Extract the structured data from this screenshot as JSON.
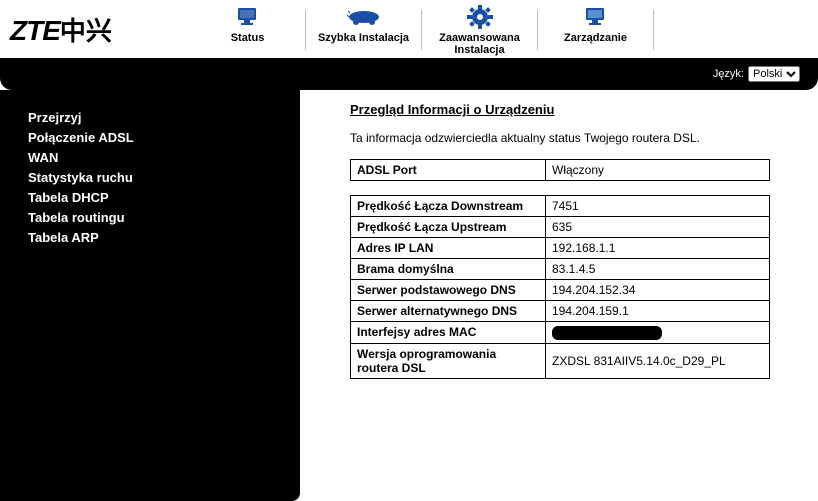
{
  "logo": {
    "text_en": "ZTE",
    "text_cn": "中兴"
  },
  "topnav": {
    "items": [
      {
        "label": "Status",
        "icon": "monitor"
      },
      {
        "label": "Szybka Instalacja",
        "icon": "car"
      },
      {
        "label": "Zaawansowana Instalacja",
        "icon": "gear"
      },
      {
        "label": "Zarządzanie",
        "icon": "monitor2"
      }
    ]
  },
  "language": {
    "label": "Język:",
    "selected": "Polski",
    "options": [
      "Polski"
    ]
  },
  "sidebar": {
    "items": [
      "Przejrzyj",
      "Połączenie ADSL",
      "WAN",
      "Statystyka ruchu",
      "Tabela DHCP",
      "Tabela routingu",
      "Tabela ARP"
    ]
  },
  "main": {
    "title": "Przegląd Informacji o Urządzeniu",
    "description": "Ta informacja odzwierciedla aktualny status Twojego routera DSL.",
    "port_table": {
      "rows": [
        {
          "key": "ADSL Port",
          "value": "Włączony"
        }
      ]
    },
    "detail_table": {
      "rows": [
        {
          "key": "Prędkość Łącza Downstream",
          "value": "7451"
        },
        {
          "key": "Prędkość Łącza Upstream",
          "value": "635"
        },
        {
          "key": "Adres IP LAN",
          "value": "192.168.1.1"
        },
        {
          "key": "Brama domyślna",
          "value": "83.1.4.5"
        },
        {
          "key": "Serwer podstawowego DNS",
          "value": "194.204.152.34"
        },
        {
          "key": "Serwer alternatywnego DNS",
          "value": "194.204.159.1"
        },
        {
          "key": "Interfejsy adres MAC",
          "value": "",
          "redacted": true
        },
        {
          "key": "Wersja oprogramowania routera DSL",
          "value": "ZXDSL 831AIIV5.14.0c_D29_PL"
        }
      ]
    }
  },
  "colors": {
    "black": "#000000",
    "white": "#ffffff",
    "icon_blue": "#1a4fa6",
    "divider": "#bbbbbb"
  }
}
